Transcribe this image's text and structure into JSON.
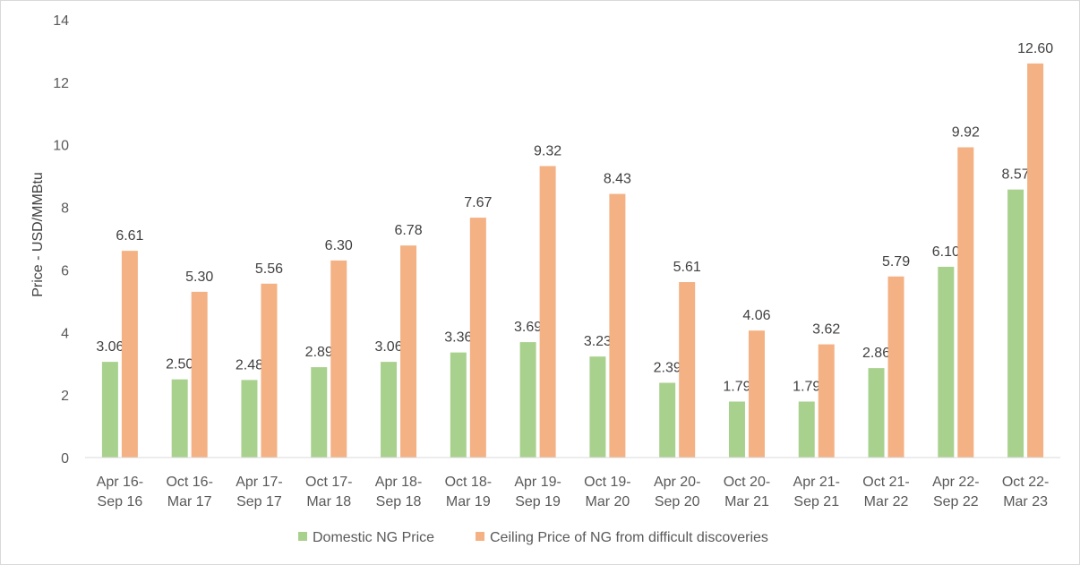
{
  "chart_data": {
    "type": "bar",
    "title": "",
    "xlabel": "",
    "ylabel": "Price - USD/MMBtu",
    "ylim": [
      0,
      14
    ],
    "yticks": [
      "0",
      "2",
      "4",
      "6",
      "8",
      "10",
      "12",
      "14"
    ],
    "grid": false,
    "legend_position": "bottom",
    "categories": [
      [
        "Apr 16-",
        "Sep 16"
      ],
      [
        "Oct 16-",
        "Mar 17"
      ],
      [
        "Apr 17-",
        "Sep 17"
      ],
      [
        "Oct 17-",
        "Mar 18"
      ],
      [
        "Apr 18-",
        "Sep 18"
      ],
      [
        "Oct 18-",
        "Mar 19"
      ],
      [
        "Apr 19-",
        "Sep 19"
      ],
      [
        "Oct 19-",
        "Mar 20"
      ],
      [
        "Apr 20-",
        "Sep 20"
      ],
      [
        "Oct 20-",
        "Mar 21"
      ],
      [
        "Apr 21-",
        "Sep 21"
      ],
      [
        "Oct 21-",
        "Mar 22"
      ],
      [
        "Apr 22-",
        "Sep 22"
      ],
      [
        "Oct 22-",
        "Mar 23"
      ]
    ],
    "series": [
      {
        "name": "Domestic NG Price",
        "color": "#a9d18e",
        "values": [
          3.06,
          2.5,
          2.48,
          2.89,
          3.06,
          3.36,
          3.69,
          3.23,
          2.39,
          1.79,
          1.79,
          2.86,
          6.1,
          8.57
        ],
        "labels": [
          "3.06",
          "2.50",
          "2.48",
          "2.89",
          "3.06",
          "3.36",
          "3.69",
          "3.23",
          "2.39",
          "1.79",
          "1.79",
          "2.86",
          "6.10",
          "8.57"
        ]
      },
      {
        "name": "Ceiling Price of NG from difficult discoveries",
        "color": "#f4b183",
        "values": [
          6.61,
          5.3,
          5.56,
          6.3,
          6.78,
          7.67,
          9.32,
          8.43,
          5.61,
          4.06,
          3.62,
          5.79,
          9.92,
          12.6
        ],
        "labels": [
          "6.61",
          "5.30",
          "5.56",
          "6.30",
          "6.78",
          "7.67",
          "9.32",
          "8.43",
          "5.61",
          "4.06",
          "3.62",
          "5.79",
          "9.92",
          "12.60"
        ]
      }
    ]
  }
}
